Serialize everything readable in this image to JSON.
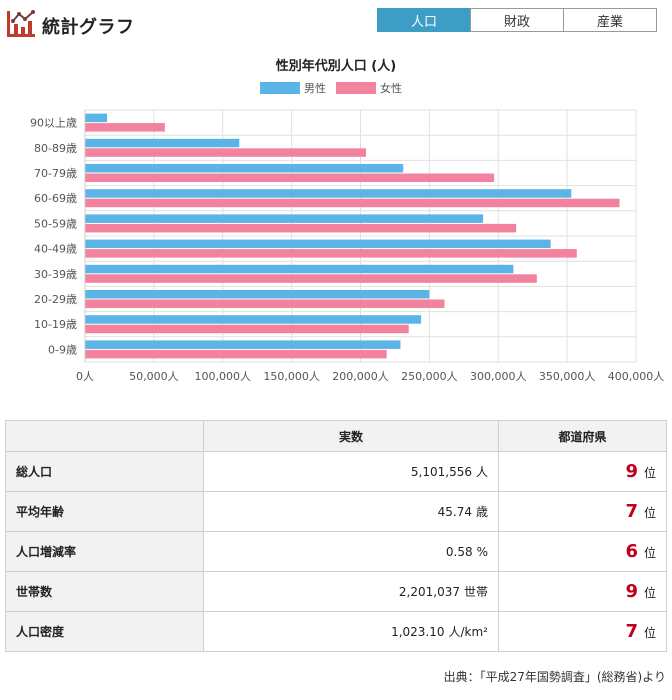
{
  "header": {
    "title": "統計グラフ",
    "tabs": [
      {
        "label": "人口",
        "active": true
      },
      {
        "label": "財政",
        "active": false
      },
      {
        "label": "産業",
        "active": false
      }
    ]
  },
  "colors": {
    "male": "#5ab4e6",
    "female": "#f3829e",
    "accent": "#3d9dc4",
    "rank": "#c0001d"
  },
  "chart_data": {
    "type": "bar",
    "orientation": "horizontal",
    "title": "性別年代別人口 (人)",
    "categories": [
      "90以上歳",
      "80-89歳",
      "70-79歳",
      "60-69歳",
      "50-59歳",
      "40-49歳",
      "30-39歳",
      "20-29歳",
      "10-19歳",
      "0-9歳"
    ],
    "series": [
      {
        "name": "男性",
        "values": [
          16000,
          112000,
          231000,
          353000,
          289000,
          338000,
          311000,
          250000,
          244000,
          229000
        ]
      },
      {
        "name": "女性",
        "values": [
          58000,
          204000,
          297000,
          388000,
          313000,
          357000,
          328000,
          261000,
          235000,
          219000
        ]
      }
    ],
    "xlim": [
      0,
      400000
    ],
    "xticks": [
      "0人",
      "50,000人",
      "100,000人",
      "150,000人",
      "200,000人",
      "250,000人",
      "300,000人",
      "350,000人",
      "400,000人"
    ],
    "legend": "top"
  },
  "stats": {
    "headers": [
      "",
      "実数",
      "都道府県"
    ],
    "rows": [
      {
        "label": "総人口",
        "value": "5,101,556",
        "unit": "人",
        "rank": "9",
        "rank_unit": "位"
      },
      {
        "label": "平均年齢",
        "value": "45.74",
        "unit": "歳",
        "rank": "7",
        "rank_unit": "位"
      },
      {
        "label": "人口増減率",
        "value": "0.58",
        "unit": "%",
        "rank": "6",
        "rank_unit": "位"
      },
      {
        "label": "世帯数",
        "value": "2,201,037",
        "unit": "世帯",
        "rank": "9",
        "rank_unit": "位"
      },
      {
        "label": "人口密度",
        "value": "1,023.10",
        "unit": "人/km²",
        "rank": "7",
        "rank_unit": "位"
      }
    ]
  },
  "source": "出典：「平成27年国勢調査」(総務省)より"
}
